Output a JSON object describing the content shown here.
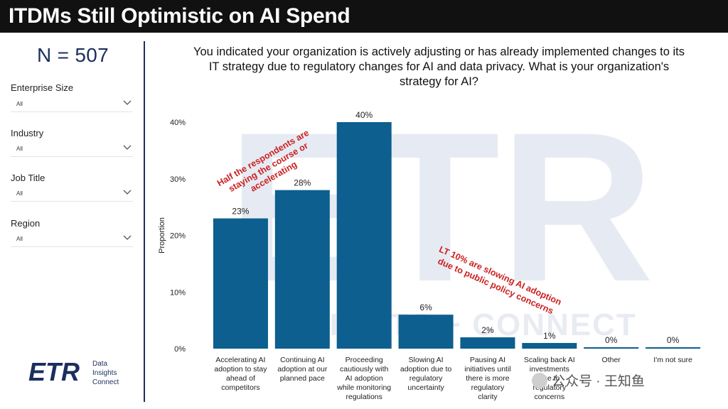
{
  "header": {
    "title": "ITDMs Still Optimistic on AI Spend"
  },
  "sample": {
    "n_label": "N = 507"
  },
  "filters": [
    {
      "label": "Enterprise Size",
      "value": "All"
    },
    {
      "label": "Industry",
      "value": "All"
    },
    {
      "label": "Job Title",
      "value": "All"
    },
    {
      "label": "Region",
      "value": "All"
    }
  ],
  "logo": {
    "mark": "ETR",
    "tagline": "Data\nInsights\nConnect"
  },
  "watermark": {
    "text": "公众号 · 王知鱼"
  },
  "colors": {
    "bar": "#0c5f8e",
    "annotation": "#cc1f1f",
    "header_bg": "#111111",
    "brand": "#1b2f5e"
  },
  "chart_data": {
    "type": "bar",
    "title": "You indicated your organization is actively adjusting or has already implemented changes to its\nIT strategy due to regulatory changes for AI and data privacy. What is your organization's\nstrategy for AI?",
    "ylabel": "Proportion",
    "xlabel": "",
    "ylim": [
      0,
      0.4
    ],
    "yticks": [
      0,
      0.1,
      0.2,
      0.3,
      0.4
    ],
    "ytick_labels": [
      "0%",
      "10%",
      "20%",
      "30%",
      "40%"
    ],
    "categories": [
      "Accelerating AI\nadoption to stay\nahead of\ncompetitors",
      "Continuing AI\nadoption at our\nplanned pace",
      "Proceeding\ncautiously with\nAI adoption\nwhile monitoring\nregulations",
      "Slowing AI\nadoption due to\nregulatory\nuncertainty",
      "Pausing AI\ninitiatives until\nthere is more\nregulatory\nclarity",
      "Scaling back AI\ninvestments\ndue to\nregulatory\nconcerns",
      "Other",
      "I'm not sure"
    ],
    "values": [
      0.23,
      0.28,
      0.4,
      0.06,
      0.02,
      0.01,
      0.0,
      0.0
    ],
    "data_labels": [
      "23%",
      "28%",
      "40%",
      "6%",
      "2%",
      "1%",
      "0%",
      "0%"
    ],
    "annotations": [
      {
        "text": "Half the respondents are\nstaying the course or\naccelerating"
      },
      {
        "text": "LT 10% are slowing AI adoption\ndue to public policy concerns"
      }
    ],
    "background_watermark": {
      "mark": "ETR",
      "text": "INSIGHTS + CONNECT"
    }
  }
}
